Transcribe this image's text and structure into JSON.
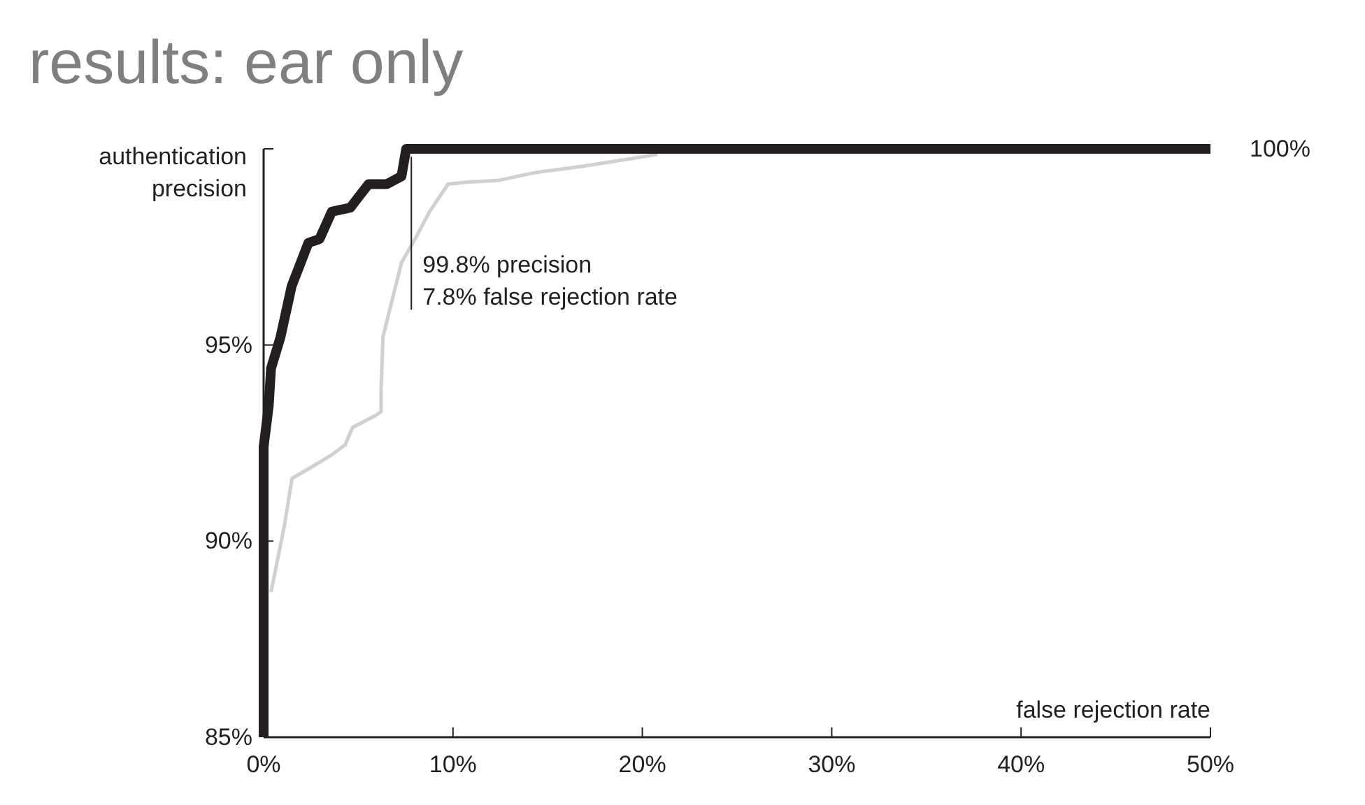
{
  "chart_data": {
    "type": "line",
    "title": "results: ear only",
    "xlabel": "false rejection rate",
    "ylabel": "authentication\nprecision",
    "xlim": [
      0,
      50
    ],
    "xticks": [
      {
        "value": 0,
        "label": "0%"
      },
      {
        "value": 10,
        "label": "10%"
      },
      {
        "value": 20,
        "label": "20%"
      },
      {
        "value": 30,
        "label": "30%"
      },
      {
        "value": 40,
        "label": "40%"
      },
      {
        "value": 50,
        "label": "50%"
      }
    ],
    "ylim": [
      85,
      100
    ],
    "yticks": [
      {
        "value": 85,
        "label": "85%"
      },
      {
        "value": 90,
        "label": "90%"
      },
      {
        "value": 95,
        "label": "95%"
      },
      {
        "value": 100,
        "label": null
      }
    ],
    "grid": false,
    "line_style": "solid",
    "series": [
      {
        "color": "#d0d0d0",
        "x": [
          0.39,
          1.1,
          1.5,
          2.4,
          3.6,
          4.3,
          4.7,
          5.9,
          6.2,
          6.2,
          6.3,
          7.28,
          8.0,
          8.76,
          9.74,
          10.7,
          12.45,
          14.4,
          16.9,
          19.3,
          20.8
        ],
        "values": [
          88.7,
          90.4,
          91.6,
          91.85,
          92.2,
          92.45,
          92.9,
          93.2,
          93.3,
          93.8,
          95.2,
          97.1,
          97.7,
          98.4,
          99.1,
          99.15,
          99.2,
          99.4,
          99.56,
          99.74,
          99.86
        ]
      },
      {
        "color": "#231f20",
        "x": [
          0,
          0,
          0.27,
          0.39,
          0.89,
          1.48,
          2.36,
          2.95,
          3.6,
          4.58,
          5.54,
          6.5,
          7.28,
          7.53,
          50
        ],
        "values": [
          85,
          92.4,
          93.45,
          94.4,
          95.2,
          96.5,
          97.6,
          97.7,
          98.4,
          98.5,
          99.1,
          99.1,
          99.3,
          100,
          100
        ]
      }
    ],
    "annotations": [
      {
        "text": "99.8% precision\n  7.8% false rejection rate",
        "x": 7.8,
        "y": 99.8
      },
      {
        "text": "100%",
        "x": 50,
        "y": 100
      }
    ]
  }
}
